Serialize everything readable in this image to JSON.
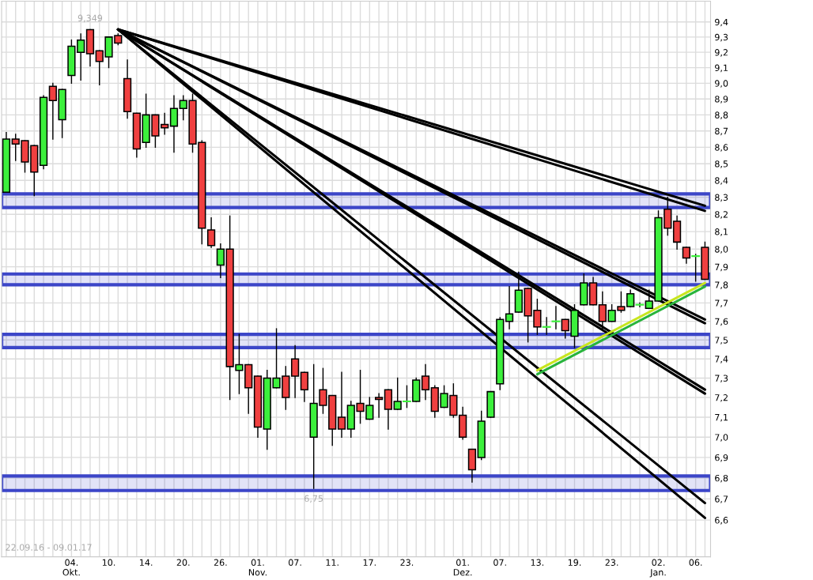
{
  "chart_data": {
    "type": "candlestick",
    "categories": [
      null,
      null,
      null,
      null,
      null,
      null,
      null,
      "04.\nOkt.",
      null,
      null,
      null,
      "10.",
      null,
      null,
      null,
      "14.",
      null,
      null,
      null,
      "20.",
      null,
      null,
      null,
      "26.",
      null,
      null,
      null,
      "01.\nNov.",
      null,
      null,
      null,
      "07.",
      null,
      null,
      null,
      "11.",
      null,
      null,
      null,
      "17.",
      null,
      null,
      null,
      "23.",
      null,
      null,
      null,
      null,
      null,
      "01.\nDez.",
      null,
      null,
      null,
      "07.",
      null,
      null,
      null,
      "13.",
      null,
      null,
      null,
      "19.",
      null,
      null,
      null,
      "23.",
      null,
      null,
      null,
      null,
      "02.\nJan.",
      null,
      null,
      null,
      "06.",
      null
    ],
    "ohlc": [
      [
        8.33,
        8.69,
        8.33,
        8.65
      ],
      [
        8.65,
        8.68,
        8.52,
        8.62
      ],
      [
        8.64,
        8.64,
        8.45,
        8.51
      ],
      [
        8.61,
        8.61,
        8.31,
        8.45
      ],
      [
        8.49,
        8.92,
        8.47,
        8.91
      ],
      [
        8.98,
        9.0,
        8.65,
        8.89
      ],
      [
        8.77,
        8.96,
        8.66,
        8.96
      ],
      [
        9.05,
        9.28,
        9.0,
        9.24
      ],
      [
        9.2,
        9.32,
        9.02,
        9.28
      ],
      [
        9.349,
        9.349,
        9.11,
        9.19
      ],
      [
        9.21,
        9.21,
        8.99,
        9.14
      ],
      [
        9.17,
        9.3,
        9.1,
        9.3
      ],
      [
        9.31,
        9.32,
        9.25,
        9.26
      ],
      [
        9.03,
        9.15,
        8.78,
        8.82
      ],
      [
        8.81,
        8.81,
        8.54,
        8.59
      ],
      [
        8.63,
        8.93,
        8.6,
        8.8
      ],
      [
        8.8,
        8.8,
        8.6,
        8.67
      ],
      [
        8.74,
        8.81,
        8.68,
        8.72
      ],
      [
        8.73,
        8.92,
        8.57,
        8.84
      ],
      [
        8.84,
        8.92,
        8.77,
        8.89
      ],
      [
        8.89,
        8.93,
        8.57,
        8.62
      ],
      [
        8.63,
        8.64,
        8.03,
        8.12
      ],
      [
        8.11,
        8.18,
        8.01,
        8.02
      ],
      [
        7.91,
        8.03,
        7.84,
        8.0
      ],
      [
        8.0,
        8.19,
        7.19,
        7.36
      ],
      [
        7.34,
        7.53,
        7.22,
        7.37
      ],
      [
        7.37,
        7.37,
        7.12,
        7.25
      ],
      [
        7.31,
        7.31,
        7.0,
        7.05
      ],
      [
        7.04,
        7.34,
        6.94,
        7.3
      ],
      [
        7.25,
        7.56,
        7.25,
        7.3
      ],
      [
        7.31,
        7.36,
        7.14,
        7.2
      ],
      [
        7.4,
        7.47,
        7.2,
        7.31
      ],
      [
        7.33,
        7.33,
        7.18,
        7.24
      ],
      [
        7.0,
        7.37,
        6.75,
        7.17
      ],
      [
        7.24,
        7.35,
        7.12,
        7.16
      ],
      [
        7.21,
        7.21,
        6.96,
        7.04
      ],
      [
        7.1,
        7.33,
        7.0,
        7.04
      ],
      [
        7.04,
        7.18,
        7.0,
        7.16
      ],
      [
        7.17,
        7.34,
        7.07,
        7.13
      ],
      [
        7.09,
        7.2,
        7.09,
        7.16
      ],
      [
        7.2,
        7.22,
        7.1,
        7.19
      ],
      [
        7.24,
        7.24,
        7.04,
        7.14
      ],
      [
        7.14,
        7.3,
        7.14,
        7.18
      ],
      [
        7.18,
        7.26,
        7.15,
        7.18
      ],
      [
        7.18,
        7.3,
        7.18,
        7.29
      ],
      [
        7.31,
        7.37,
        7.19,
        7.24
      ],
      [
        7.25,
        7.26,
        7.1,
        7.13
      ],
      [
        7.15,
        7.26,
        7.15,
        7.22
      ],
      [
        7.21,
        7.27,
        7.1,
        7.11
      ],
      [
        7.11,
        7.15,
        6.99,
        7.0
      ],
      [
        6.94,
        6.94,
        6.78,
        6.84
      ],
      [
        6.9,
        7.13,
        6.89,
        7.08
      ],
      [
        7.1,
        7.23,
        7.1,
        7.23
      ],
      [
        7.27,
        7.62,
        7.24,
        7.61
      ],
      [
        7.6,
        7.79,
        7.56,
        7.64
      ],
      [
        7.65,
        7.87,
        7.65,
        7.77
      ],
      [
        7.78,
        7.78,
        7.49,
        7.63
      ],
      [
        7.66,
        7.72,
        7.53,
        7.57
      ],
      [
        7.57,
        7.62,
        7.53,
        7.57
      ],
      [
        7.6,
        7.68,
        7.56,
        7.6
      ],
      [
        7.61,
        7.61,
        7.51,
        7.55
      ],
      [
        7.52,
        7.69,
        7.46,
        7.66
      ],
      [
        7.69,
        7.86,
        7.69,
        7.81
      ],
      [
        7.81,
        7.84,
        7.69,
        7.69
      ],
      [
        7.69,
        7.76,
        7.56,
        7.6
      ],
      [
        7.6,
        7.69,
        7.6,
        7.66
      ],
      [
        7.68,
        7.76,
        7.65,
        7.66
      ],
      [
        7.68,
        7.77,
        7.68,
        7.75
      ],
      [
        7.69,
        7.7,
        7.68,
        7.69
      ],
      [
        7.67,
        7.77,
        7.67,
        7.71
      ],
      [
        7.71,
        8.22,
        7.71,
        8.18
      ],
      [
        8.23,
        8.3,
        8.08,
        8.12
      ],
      [
        8.16,
        8.19,
        8.0,
        8.04
      ],
      [
        8.01,
        8.01,
        7.92,
        7.95
      ],
      [
        7.96,
        7.97,
        7.82,
        7.96
      ],
      [
        8.01,
        8.04,
        7.83,
        7.83
      ]
    ],
    "colors": [
      "#3cf03c",
      "#f04040",
      "#f04040",
      "#f04040",
      "#3cf03c",
      "#f04040",
      "#3cf03c",
      "#3cf03c",
      "#3cf03c",
      "#f04040",
      "#f04040",
      "#3cf03c",
      "#f04040",
      "#f04040",
      "#f04040",
      "#3cf03c",
      "#f04040",
      "#f04040",
      "#3cf03c",
      "#3cf03c",
      "#f04040",
      "#f04040",
      "#f04040",
      "#3cf03c",
      "#f04040",
      "#3cf03c",
      "#f04040",
      "#f04040",
      "#3cf03c",
      "#3cf03c",
      "#f04040",
      "#f04040",
      "#f04040",
      "#3cf03c",
      "#f04040",
      "#f04040",
      "#f04040",
      "#3cf03c",
      "#f04040",
      "#3cf03c",
      "#f04040",
      "#f04040",
      "#3cf03c",
      "#3cf03c",
      "#3cf03c",
      "#f04040",
      "#f04040",
      "#3cf03c",
      "#f04040",
      "#f04040",
      "#f04040",
      "#3cf03c",
      "#3cf03c",
      "#3cf03c",
      "#3cf03c",
      "#3cf03c",
      "#f04040",
      "#f04040",
      "#3cf03c",
      "#3cf03c",
      "#f04040",
      "#3cf03c",
      "#3cf03c",
      "#f04040",
      "#f04040",
      "#3cf03c",
      "#f04040",
      "#3cf03c",
      "#3cf03c",
      "#3cf03c",
      "#3cf03c",
      "#f04040",
      "#f04040",
      "#f04040",
      "#3cf03c",
      "#f04040"
    ],
    "series": [
      {
        "type": "line",
        "color": "#000000",
        "values": [
          null,
          null,
          null,
          null,
          null,
          null,
          null,
          null,
          null,
          null,
          null,
          null,
          9.35,
          null,
          null,
          null,
          null,
          null,
          null,
          null,
          null,
          null,
          null,
          null,
          null,
          null,
          null,
          null,
          null,
          null,
          null,
          null,
          null,
          null,
          null,
          null,
          null,
          null,
          null,
          null,
          null,
          null,
          null,
          null,
          null,
          null,
          null,
          null,
          null,
          null,
          null,
          null,
          null,
          null,
          null,
          null,
          null,
          null,
          null,
          null,
          null,
          null,
          null,
          null,
          null,
          null,
          null,
          null,
          null,
          null,
          null,
          null,
          null,
          null,
          null,
          8.25
        ]
      },
      {
        "type": "line",
        "color": "#000000",
        "values": [
          null,
          null,
          null,
          null,
          null,
          null,
          null,
          null,
          null,
          null,
          null,
          null,
          9.35,
          null,
          null,
          null,
          null,
          null,
          null,
          null,
          null,
          null,
          null,
          null,
          null,
          null,
          null,
          null,
          null,
          null,
          null,
          null,
          null,
          null,
          null,
          null,
          null,
          null,
          null,
          null,
          null,
          null,
          null,
          null,
          null,
          null,
          null,
          null,
          null,
          null,
          null,
          null,
          null,
          null,
          null,
          null,
          null,
          null,
          null,
          null,
          null,
          null,
          null,
          null,
          null,
          null,
          null,
          null,
          null,
          null,
          null,
          null,
          null,
          null,
          null,
          8.22
        ]
      },
      {
        "type": "line",
        "color": "#000000",
        "values": [
          null,
          null,
          null,
          null,
          null,
          null,
          null,
          null,
          null,
          null,
          null,
          null,
          9.35,
          null,
          null,
          null,
          null,
          null,
          null,
          null,
          null,
          null,
          null,
          null,
          null,
          null,
          null,
          null,
          null,
          null,
          null,
          null,
          null,
          null,
          null,
          null,
          null,
          null,
          null,
          null,
          null,
          null,
          null,
          null,
          null,
          null,
          null,
          null,
          null,
          null,
          null,
          null,
          null,
          null,
          null,
          null,
          null,
          null,
          null,
          null,
          null,
          null,
          null,
          null,
          null,
          null,
          null,
          null,
          null,
          null,
          null,
          null,
          null,
          null,
          null,
          7.61
        ]
      },
      {
        "type": "line",
        "color": "#000000",
        "values": [
          null,
          null,
          null,
          null,
          null,
          null,
          null,
          null,
          null,
          null,
          null,
          null,
          9.35,
          null,
          null,
          null,
          null,
          null,
          null,
          null,
          null,
          null,
          null,
          null,
          null,
          null,
          null,
          null,
          null,
          null,
          null,
          null,
          null,
          null,
          null,
          null,
          null,
          null,
          null,
          null,
          null,
          null,
          null,
          null,
          null,
          null,
          null,
          null,
          null,
          null,
          null,
          null,
          null,
          null,
          null,
          null,
          null,
          null,
          null,
          null,
          null,
          null,
          null,
          null,
          null,
          null,
          null,
          null,
          null,
          null,
          null,
          null,
          null,
          null,
          null,
          7.59
        ]
      },
      {
        "type": "line",
        "color": "#000000",
        "values": [
          null,
          null,
          null,
          null,
          null,
          null,
          null,
          null,
          null,
          null,
          null,
          null,
          9.35,
          null,
          null,
          null,
          null,
          null,
          null,
          null,
          null,
          null,
          null,
          null,
          null,
          null,
          null,
          null,
          null,
          null,
          null,
          null,
          null,
          null,
          null,
          null,
          null,
          null,
          null,
          null,
          null,
          null,
          null,
          null,
          null,
          null,
          null,
          null,
          null,
          null,
          null,
          null,
          null,
          null,
          null,
          null,
          null,
          null,
          null,
          null,
          null,
          null,
          null,
          null,
          null,
          null,
          null,
          null,
          null,
          null,
          null,
          null,
          null,
          null,
          null,
          7.24
        ]
      },
      {
        "type": "line",
        "color": "#000000",
        "values": [
          null,
          null,
          null,
          null,
          null,
          null,
          null,
          null,
          null,
          null,
          null,
          null,
          9.35,
          null,
          null,
          null,
          null,
          null,
          null,
          null,
          null,
          null,
          null,
          null,
          null,
          null,
          null,
          null,
          null,
          null,
          null,
          null,
          null,
          null,
          null,
          null,
          null,
          null,
          null,
          null,
          null,
          null,
          null,
          null,
          null,
          null,
          null,
          null,
          null,
          null,
          null,
          null,
          null,
          null,
          null,
          null,
          null,
          null,
          null,
          null,
          null,
          null,
          null,
          null,
          null,
          null,
          null,
          null,
          null,
          null,
          null,
          null,
          null,
          null,
          null,
          7.22
        ]
      },
      {
        "type": "line",
        "color": "#000000",
        "values": [
          null,
          null,
          null,
          null,
          null,
          null,
          null,
          null,
          null,
          null,
          null,
          null,
          9.35,
          null,
          null,
          null,
          null,
          null,
          null,
          null,
          null,
          null,
          null,
          null,
          null,
          null,
          null,
          null,
          null,
          null,
          null,
          null,
          null,
          null,
          null,
          null,
          null,
          null,
          null,
          null,
          null,
          null,
          null,
          null,
          null,
          null,
          null,
          null,
          null,
          null,
          null,
          null,
          null,
          null,
          null,
          null,
          null,
          null,
          null,
          null,
          null,
          null,
          null,
          null,
          null,
          null,
          null,
          null,
          null,
          null,
          null,
          null,
          null,
          null,
          null,
          6.68
        ]
      },
      {
        "type": "line",
        "color": "#000000",
        "values": [
          null,
          null,
          null,
          null,
          null,
          null,
          null,
          null,
          null,
          null,
          null,
          null,
          9.35,
          null,
          null,
          null,
          null,
          null,
          null,
          null,
          null,
          null,
          null,
          null,
          null,
          null,
          null,
          null,
          null,
          null,
          null,
          null,
          null,
          null,
          null,
          null,
          null,
          null,
          null,
          null,
          null,
          null,
          null,
          null,
          null,
          null,
          null,
          null,
          null,
          null,
          null,
          null,
          null,
          null,
          null,
          null,
          null,
          null,
          null,
          null,
          null,
          null,
          null,
          null,
          null,
          null,
          null,
          null,
          null,
          null,
          null,
          null,
          null,
          null,
          null,
          6.61
        ]
      },
      {
        "type": "line",
        "color": "#c8e61e",
        "values": [
          null,
          null,
          null,
          null,
          null,
          null,
          null,
          null,
          null,
          null,
          null,
          null,
          null,
          null,
          null,
          null,
          null,
          null,
          null,
          null,
          null,
          null,
          null,
          null,
          null,
          null,
          null,
          null,
          null,
          null,
          null,
          null,
          null,
          null,
          null,
          null,
          null,
          null,
          null,
          null,
          null,
          null,
          null,
          null,
          null,
          null,
          null,
          null,
          null,
          null,
          null,
          null,
          null,
          null,
          null,
          null,
          null,
          7.34,
          null,
          null,
          null,
          null,
          null,
          null,
          null,
          null,
          null,
          null,
          null,
          null,
          null,
          null,
          null,
          null,
          null,
          7.81
        ]
      },
      {
        "type": "line",
        "color": "#28b43c",
        "values": [
          null,
          null,
          null,
          null,
          null,
          null,
          null,
          null,
          null,
          null,
          null,
          null,
          null,
          null,
          null,
          null,
          null,
          null,
          null,
          null,
          null,
          null,
          null,
          null,
          null,
          null,
          null,
          null,
          null,
          null,
          null,
          null,
          null,
          null,
          null,
          null,
          null,
          null,
          null,
          null,
          null,
          null,
          null,
          null,
          null,
          null,
          null,
          null,
          null,
          null,
          null,
          null,
          null,
          null,
          null,
          null,
          null,
          7.32,
          null,
          null,
          null,
          null,
          null,
          null,
          null,
          null,
          null,
          null,
          null,
          null,
          null,
          null,
          null,
          null,
          null,
          7.79
        ]
      }
    ],
    "bands": [
      {
        "axis": "y",
        "from": 8.24,
        "to": 8.32,
        "color": "#3c46c8"
      },
      {
        "axis": "y",
        "from": 7.8,
        "to": 7.86,
        "color": "#3c46c8"
      },
      {
        "axis": "y",
        "from": 7.46,
        "to": 7.53,
        "color": "#3c46c8"
      },
      {
        "axis": "y",
        "from": 6.74,
        "to": 6.81,
        "color": "#3c46c8"
      }
    ],
    "annotations": [
      {
        "text": "9,349",
        "y": 9.349
      },
      {
        "text": "6,75",
        "y": 6.75
      },
      "22.09.16 - 09.01.17"
    ],
    "log": true,
    "ylim": [
      6.43,
      9.54
    ],
    "yticks": [
      {
        "value": 6.6,
        "label": "6,6"
      },
      {
        "value": 6.7,
        "label": "6,7"
      },
      {
        "value": 6.8,
        "label": "6,8"
      },
      {
        "value": 6.9,
        "label": "6,9"
      },
      {
        "value": 7.0,
        "label": "7,0"
      },
      {
        "value": 7.1,
        "label": "7,1"
      },
      {
        "value": 7.2,
        "label": "7,2"
      },
      {
        "value": 7.3,
        "label": "7,3"
      },
      {
        "value": 7.4,
        "label": "7,4"
      },
      {
        "value": 7.5,
        "label": "7,5"
      },
      {
        "value": 7.6,
        "label": "7,6"
      },
      {
        "value": 7.7,
        "label": "7,7"
      },
      {
        "value": 7.8,
        "label": "7,8"
      },
      {
        "value": 7.9,
        "label": "7,9"
      },
      {
        "value": 8.0,
        "label": "8,0"
      },
      {
        "value": 8.1,
        "label": "8,1"
      },
      {
        "value": 8.2,
        "label": "8,2"
      },
      {
        "value": 8.3,
        "label": "8,3"
      },
      {
        "value": 8.4,
        "label": "8,4"
      },
      {
        "value": 8.5,
        "label": "8,5"
      },
      {
        "value": 8.6,
        "label": "8,6"
      },
      {
        "value": 8.7,
        "label": "8,7"
      },
      {
        "value": 8.8,
        "label": "8,8"
      },
      {
        "value": 8.9,
        "label": "8,9"
      },
      {
        "value": 9.0,
        "label": "9,0"
      },
      {
        "value": 9.1,
        "label": "9,1"
      },
      {
        "value": 9.2,
        "label": "9,2"
      },
      {
        "value": 9.3,
        "label": "9,3"
      },
      {
        "value": 9.4,
        "label": "9,4"
      }
    ],
    "grid": true
  }
}
